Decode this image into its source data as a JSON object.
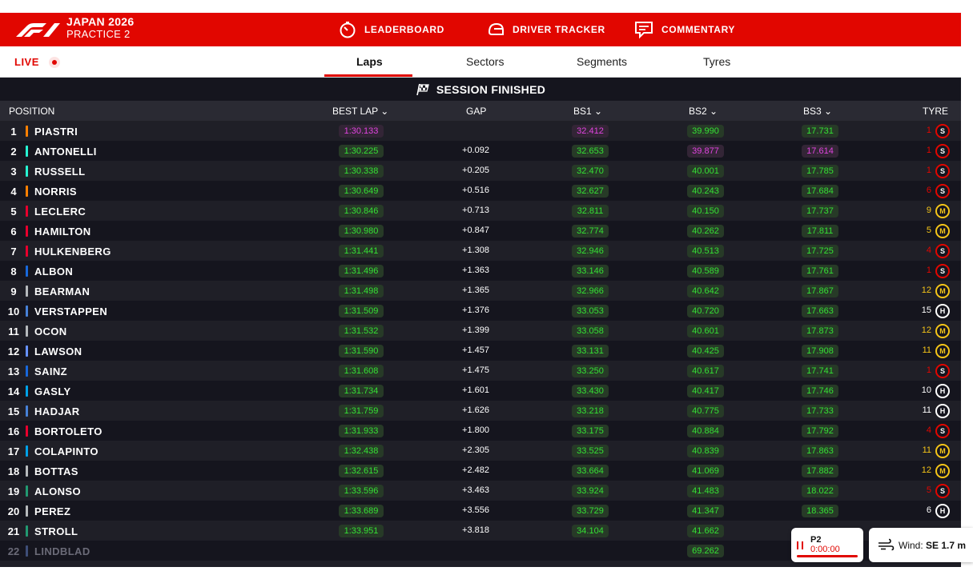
{
  "header": {
    "event_title": "JAPAN 2026",
    "session_name": "PRACTICE 2",
    "nav": [
      {
        "label": "LEADERBOARD",
        "icon": "stopwatch-icon",
        "active": true
      },
      {
        "label": "DRIVER TRACKER",
        "icon": "helmet-icon",
        "active": false
      },
      {
        "label": "COMMENTARY",
        "icon": "chat-icon",
        "active": false
      }
    ]
  },
  "subbar": {
    "live_label": "LIVE",
    "tabs": [
      {
        "label": "Laps",
        "active": true
      },
      {
        "label": "Sectors",
        "active": false
      },
      {
        "label": "Segments",
        "active": false
      },
      {
        "label": "Tyres",
        "active": false
      }
    ]
  },
  "banner": {
    "text": "SESSION FINISHED",
    "icon": "checkered-flag-icon"
  },
  "columns": {
    "position": "POSITION",
    "best_lap": "BEST LAP",
    "gap": "GAP",
    "bs1": "BS1",
    "bs2": "BS2",
    "bs3": "BS3",
    "tyre": "TYRE"
  },
  "rows": [
    {
      "pos": "1",
      "driver": "PIASTRI",
      "team_color": "#ff8000",
      "best": "1:30.133",
      "best_purple": true,
      "gap": "",
      "s1": "32.412",
      "s1_purple": true,
      "s2": "39.990",
      "s2_purple": false,
      "s3": "17.731",
      "s3_purple": false,
      "laps": "1",
      "tyre": "S"
    },
    {
      "pos": "2",
      "driver": "ANTONELLI",
      "team_color": "#27f4d2",
      "best": "1:30.225",
      "best_purple": false,
      "gap": "+0.092",
      "s1": "32.653",
      "s1_purple": false,
      "s2": "39.877",
      "s2_purple": true,
      "s3": "17.614",
      "s3_purple": true,
      "laps": "1",
      "tyre": "S"
    },
    {
      "pos": "3",
      "driver": "RUSSELL",
      "team_color": "#27f4d2",
      "best": "1:30.338",
      "best_purple": false,
      "gap": "+0.205",
      "s1": "32.470",
      "s1_purple": false,
      "s2": "40.001",
      "s2_purple": false,
      "s3": "17.785",
      "s3_purple": false,
      "laps": "1",
      "tyre": "S"
    },
    {
      "pos": "4",
      "driver": "NORRIS",
      "team_color": "#ff8000",
      "best": "1:30.649",
      "best_purple": false,
      "gap": "+0.516",
      "s1": "32.627",
      "s1_purple": false,
      "s2": "40.243",
      "s2_purple": false,
      "s3": "17.684",
      "s3_purple": false,
      "laps": "6",
      "tyre": "S"
    },
    {
      "pos": "5",
      "driver": "LECLERC",
      "team_color": "#e8002d",
      "best": "1:30.846",
      "best_purple": false,
      "gap": "+0.713",
      "s1": "32.811",
      "s1_purple": false,
      "s2": "40.150",
      "s2_purple": false,
      "s3": "17.737",
      "s3_purple": false,
      "laps": "9",
      "tyre": "M"
    },
    {
      "pos": "6",
      "driver": "HAMILTON",
      "team_color": "#e8002d",
      "best": "1:30.980",
      "best_purple": false,
      "gap": "+0.847",
      "s1": "32.774",
      "s1_purple": false,
      "s2": "40.262",
      "s2_purple": false,
      "s3": "17.811",
      "s3_purple": false,
      "laps": "5",
      "tyre": "M"
    },
    {
      "pos": "7",
      "driver": "HULKENBERG",
      "team_color": "#e8002d",
      "best": "1:31.441",
      "best_purple": false,
      "gap": "+1.308",
      "s1": "32.946",
      "s1_purple": false,
      "s2": "40.513",
      "s2_purple": false,
      "s3": "17.725",
      "s3_purple": false,
      "laps": "4",
      "tyre": "S"
    },
    {
      "pos": "8",
      "driver": "ALBON",
      "team_color": "#1868db",
      "best": "1:31.496",
      "best_purple": false,
      "gap": "+1.363",
      "s1": "33.146",
      "s1_purple": false,
      "s2": "40.589",
      "s2_purple": false,
      "s3": "17.761",
      "s3_purple": false,
      "laps": "1",
      "tyre": "S"
    },
    {
      "pos": "9",
      "driver": "BEARMAN",
      "team_color": "#b6babd",
      "best": "1:31.498",
      "best_purple": false,
      "gap": "+1.365",
      "s1": "32.966",
      "s1_purple": false,
      "s2": "40.642",
      "s2_purple": false,
      "s3": "17.867",
      "s3_purple": false,
      "laps": "12",
      "tyre": "M"
    },
    {
      "pos": "10",
      "driver": "VERSTAPPEN",
      "team_color": "#4781d7",
      "best": "1:31.509",
      "best_purple": false,
      "gap": "+1.376",
      "s1": "33.053",
      "s1_purple": false,
      "s2": "40.720",
      "s2_purple": false,
      "s3": "17.663",
      "s3_purple": false,
      "laps": "15",
      "tyre": "H"
    },
    {
      "pos": "11",
      "driver": "OCON",
      "team_color": "#b6babd",
      "best": "1:31.532",
      "best_purple": false,
      "gap": "+1.399",
      "s1": "33.058",
      "s1_purple": false,
      "s2": "40.601",
      "s2_purple": false,
      "s3": "17.873",
      "s3_purple": false,
      "laps": "12",
      "tyre": "M"
    },
    {
      "pos": "12",
      "driver": "LAWSON",
      "team_color": "#6692ff",
      "best": "1:31.590",
      "best_purple": false,
      "gap": "+1.457",
      "s1": "33.131",
      "s1_purple": false,
      "s2": "40.425",
      "s2_purple": false,
      "s3": "17.908",
      "s3_purple": false,
      "laps": "11",
      "tyre": "M"
    },
    {
      "pos": "13",
      "driver": "SAINZ",
      "team_color": "#1868db",
      "best": "1:31.608",
      "best_purple": false,
      "gap": "+1.475",
      "s1": "33.250",
      "s1_purple": false,
      "s2": "40.617",
      "s2_purple": false,
      "s3": "17.741",
      "s3_purple": false,
      "laps": "1",
      "tyre": "S"
    },
    {
      "pos": "14",
      "driver": "GASLY",
      "team_color": "#00a1e8",
      "best": "1:31.734",
      "best_purple": false,
      "gap": "+1.601",
      "s1": "33.430",
      "s1_purple": false,
      "s2": "40.417",
      "s2_purple": false,
      "s3": "17.746",
      "s3_purple": false,
      "laps": "10",
      "tyre": "H"
    },
    {
      "pos": "15",
      "driver": "HADJAR",
      "team_color": "#4781d7",
      "best": "1:31.759",
      "best_purple": false,
      "gap": "+1.626",
      "s1": "33.218",
      "s1_purple": false,
      "s2": "40.775",
      "s2_purple": false,
      "s3": "17.733",
      "s3_purple": false,
      "laps": "11",
      "tyre": "H"
    },
    {
      "pos": "16",
      "driver": "BORTOLETO",
      "team_color": "#e8002d",
      "best": "1:31.933",
      "best_purple": false,
      "gap": "+1.800",
      "s1": "33.175",
      "s1_purple": false,
      "s2": "40.884",
      "s2_purple": false,
      "s3": "17.792",
      "s3_purple": false,
      "laps": "4",
      "tyre": "S"
    },
    {
      "pos": "17",
      "driver": "COLAPINTO",
      "team_color": "#00a1e8",
      "best": "1:32.438",
      "best_purple": false,
      "gap": "+2.305",
      "s1": "33.525",
      "s1_purple": false,
      "s2": "40.839",
      "s2_purple": false,
      "s3": "17.863",
      "s3_purple": false,
      "laps": "11",
      "tyre": "M"
    },
    {
      "pos": "18",
      "driver": "BOTTAS",
      "team_color": "#b6babd",
      "best": "1:32.615",
      "best_purple": false,
      "gap": "+2.482",
      "s1": "33.664",
      "s1_purple": false,
      "s2": "41.069",
      "s2_purple": false,
      "s3": "17.882",
      "s3_purple": false,
      "laps": "12",
      "tyre": "M"
    },
    {
      "pos": "19",
      "driver": "ALONSO",
      "team_color": "#229971",
      "best": "1:33.596",
      "best_purple": false,
      "gap": "+3.463",
      "s1": "33.924",
      "s1_purple": false,
      "s2": "41.483",
      "s2_purple": false,
      "s3": "18.022",
      "s3_purple": false,
      "laps": "5",
      "tyre": "S"
    },
    {
      "pos": "20",
      "driver": "PEREZ",
      "team_color": "#b6babd",
      "best": "1:33.689",
      "best_purple": false,
      "gap": "+3.556",
      "s1": "33.729",
      "s1_purple": false,
      "s2": "41.347",
      "s2_purple": false,
      "s3": "18.365",
      "s3_purple": false,
      "laps": "6",
      "tyre": "H"
    },
    {
      "pos": "21",
      "driver": "STROLL",
      "team_color": "#229971",
      "best": "1:33.951",
      "best_purple": false,
      "gap": "+3.818",
      "s1": "34.104",
      "s1_purple": false,
      "s2": "41.662",
      "s2_purple": false,
      "s3": "",
      "s3_purple": false,
      "laps": "",
      "tyre": ""
    },
    {
      "pos": "22",
      "driver": "LINDBLAD",
      "team_color": "#4781d7",
      "best": "",
      "best_purple": false,
      "gap": "",
      "s1": "",
      "s1_purple": false,
      "s2": "69.262",
      "s2_purple": false,
      "s3": "",
      "s3_purple": false,
      "laps": "",
      "tyre": "",
      "out": true
    }
  ],
  "session_card": {
    "label": "P2",
    "time": "0:00:00"
  },
  "weather_card": {
    "label": "Wind:",
    "value": "SE 1.7 m"
  }
}
